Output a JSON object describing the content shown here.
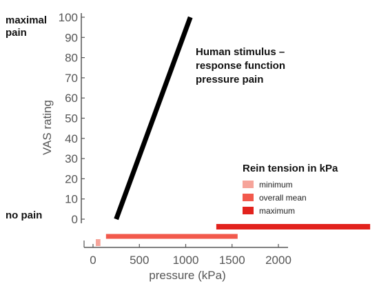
{
  "chart_data": {
    "type": "line",
    "title": "Human stimulus –\nresponse function\npressure pain",
    "xlabel": "pressure (kPa)",
    "ylabel": "VAS rating",
    "xlim": [
      0,
      2000
    ],
    "ylim": [
      0,
      100
    ],
    "x_ticks": [
      0,
      500,
      1000,
      1500,
      2000
    ],
    "y_ticks": [
      0,
      10,
      20,
      30,
      40,
      50,
      60,
      70,
      80,
      90,
      100
    ],
    "y_annotations": [
      {
        "text": "maximal\npain",
        "y": 100
      },
      {
        "text": "no pain",
        "y": 0
      }
    ],
    "series": [
      {
        "x": [
          250,
          1050
        ],
        "y": [
          0,
          100
        ]
      }
    ],
    "rein_tension": {
      "legend_title": "Rein tension in kPa",
      "items": [
        {
          "label": "minimum",
          "color": "#f6a49a",
          "start": 30,
          "end": 80
        },
        {
          "label": "overall mean",
          "color": "#f2594c",
          "start": 140,
          "end": 1560
        },
        {
          "label": "maximum",
          "color": "#e2221d",
          "start": 1330,
          "end": 2990
        }
      ]
    },
    "line_color": "#000000",
    "axis_color": "#555555"
  }
}
